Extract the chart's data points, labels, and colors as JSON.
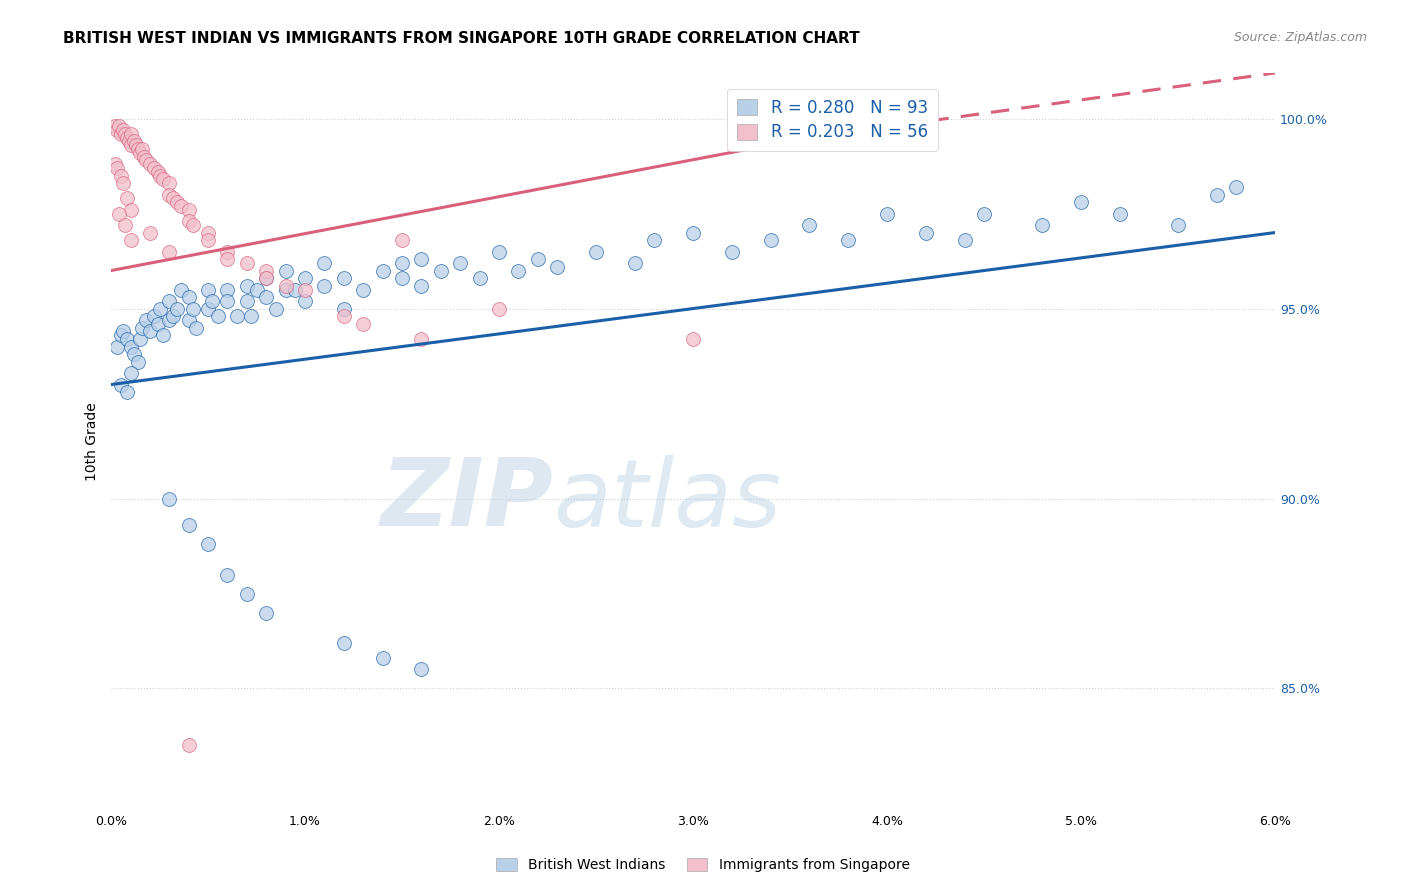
{
  "title": "BRITISH WEST INDIAN VS IMMIGRANTS FROM SINGAPORE 10TH GRADE CORRELATION CHART",
  "source": "Source: ZipAtlas.com",
  "ylabel": "10th Grade",
  "legend_blue_r": "R = 0.280",
  "legend_blue_n": "N = 93",
  "legend_pink_r": "R = 0.203",
  "legend_pink_n": "N = 56",
  "legend_label_blue": "British West Indians",
  "legend_label_pink": "Immigrants from Singapore",
  "blue_color": "#b8d0e8",
  "blue_line_color": "#1a5fa8",
  "pink_color": "#f2bfcc",
  "pink_line_color": "#d9607a",
  "watermark_zip": "ZIP",
  "watermark_atlas": "atlas",
  "xlim": [
    0.0,
    0.06
  ],
  "ylim": [
    0.818,
    1.012
  ],
  "blue_trend": [
    0.0,
    0.06,
    0.93,
    0.97
  ],
  "pink_trend_solid": [
    0.0,
    0.036,
    0.96,
    0.995
  ],
  "pink_trend_dashed": [
    0.036,
    0.06,
    0.995,
    1.012
  ],
  "blue_x": [
    0.0003,
    0.0005,
    0.0006,
    0.0008,
    0.001,
    0.0012,
    0.0014,
    0.0015,
    0.0016,
    0.0018,
    0.002,
    0.0022,
    0.0024,
    0.0025,
    0.0027,
    0.003,
    0.003,
    0.0032,
    0.0034,
    0.0036,
    0.004,
    0.004,
    0.0042,
    0.0044,
    0.005,
    0.005,
    0.0052,
    0.0055,
    0.006,
    0.006,
    0.0065,
    0.007,
    0.007,
    0.0072,
    0.0075,
    0.008,
    0.008,
    0.0085,
    0.009,
    0.009,
    0.0095,
    0.01,
    0.01,
    0.011,
    0.011,
    0.012,
    0.012,
    0.013,
    0.014,
    0.015,
    0.015,
    0.016,
    0.016,
    0.017,
    0.018,
    0.019,
    0.02,
    0.021,
    0.022,
    0.023,
    0.025,
    0.027,
    0.028,
    0.03,
    0.032,
    0.034,
    0.036,
    0.038,
    0.04,
    0.042,
    0.044,
    0.045,
    0.048,
    0.05,
    0.052,
    0.055,
    0.057,
    0.058,
    0.001,
    0.0005,
    0.0008,
    0.003,
    0.004,
    0.005,
    0.006,
    0.007,
    0.008,
    0.012,
    0.014,
    0.016
  ],
  "blue_y": [
    0.94,
    0.943,
    0.944,
    0.942,
    0.94,
    0.938,
    0.936,
    0.942,
    0.945,
    0.947,
    0.944,
    0.948,
    0.946,
    0.95,
    0.943,
    0.947,
    0.952,
    0.948,
    0.95,
    0.955,
    0.953,
    0.947,
    0.95,
    0.945,
    0.955,
    0.95,
    0.952,
    0.948,
    0.955,
    0.952,
    0.948,
    0.952,
    0.956,
    0.948,
    0.955,
    0.953,
    0.958,
    0.95,
    0.955,
    0.96,
    0.955,
    0.958,
    0.952,
    0.956,
    0.962,
    0.958,
    0.95,
    0.955,
    0.96,
    0.962,
    0.958,
    0.963,
    0.956,
    0.96,
    0.962,
    0.958,
    0.965,
    0.96,
    0.963,
    0.961,
    0.965,
    0.962,
    0.968,
    0.97,
    0.965,
    0.968,
    0.972,
    0.968,
    0.975,
    0.97,
    0.968,
    0.975,
    0.972,
    0.978,
    0.975,
    0.972,
    0.98,
    0.982,
    0.933,
    0.93,
    0.928,
    0.9,
    0.893,
    0.888,
    0.88,
    0.875,
    0.87,
    0.862,
    0.858,
    0.855
  ],
  "pink_x": [
    0.0002,
    0.0003,
    0.0004,
    0.0005,
    0.0006,
    0.0007,
    0.0008,
    0.0009,
    0.001,
    0.001,
    0.0012,
    0.0013,
    0.0014,
    0.0015,
    0.0016,
    0.0017,
    0.0018,
    0.002,
    0.0022,
    0.0024,
    0.0025,
    0.0027,
    0.003,
    0.003,
    0.0032,
    0.0034,
    0.0036,
    0.004,
    0.004,
    0.0042,
    0.005,
    0.005,
    0.006,
    0.006,
    0.007,
    0.008,
    0.008,
    0.009,
    0.01,
    0.012,
    0.013,
    0.015,
    0.016,
    0.0002,
    0.0003,
    0.0005,
    0.0006,
    0.0008,
    0.001,
    0.002,
    0.003,
    0.02,
    0.03,
    0.0004,
    0.0007,
    0.001,
    0.004
  ],
  "pink_y": [
    0.998,
    0.997,
    0.998,
    0.996,
    0.997,
    0.996,
    0.995,
    0.994,
    0.996,
    0.993,
    0.994,
    0.993,
    0.992,
    0.991,
    0.992,
    0.99,
    0.989,
    0.988,
    0.987,
    0.986,
    0.985,
    0.984,
    0.983,
    0.98,
    0.979,
    0.978,
    0.977,
    0.976,
    0.973,
    0.972,
    0.97,
    0.968,
    0.965,
    0.963,
    0.962,
    0.96,
    0.958,
    0.956,
    0.955,
    0.948,
    0.946,
    0.968,
    0.942,
    0.988,
    0.987,
    0.985,
    0.983,
    0.979,
    0.976,
    0.97,
    0.965,
    0.95,
    0.942,
    0.975,
    0.972,
    0.968,
    0.835
  ]
}
